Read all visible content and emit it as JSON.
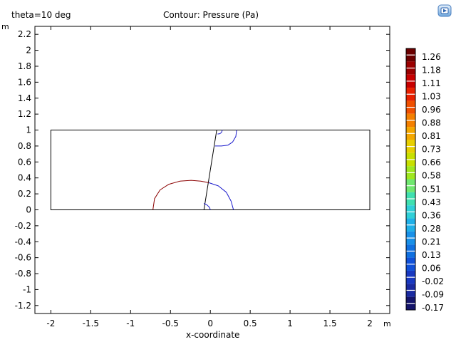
{
  "header": {
    "parameter": "theta=10 deg",
    "title": "Contour: Pressure (Pa)"
  },
  "axes": {
    "unit_y": "m",
    "unit_x": "m",
    "xlabel": "x-coordinate"
  },
  "chart_data": {
    "type": "contour",
    "title": "Contour: Pressure (Pa)",
    "xlabel": "x-coordinate",
    "ylabel": "",
    "xlim": [
      -2.2,
      2.25
    ],
    "ylim": [
      -1.3,
      2.3
    ],
    "x_ticks": [
      -2,
      -1.5,
      -1,
      -0.5,
      0,
      0.5,
      1,
      1.5,
      2
    ],
    "x_tick_labels": [
      "-2",
      "-1.5",
      "-1",
      "-0.5",
      "0",
      "0.5",
      "1",
      "1.5",
      "2"
    ],
    "y_ticks": [
      2.2,
      2,
      1.8,
      1.6,
      1.4,
      1.2,
      1,
      0.8,
      0.6,
      0.4,
      0.2,
      0,
      -0.2,
      -0.4,
      -0.6,
      -0.8,
      -1,
      -1.2
    ],
    "y_tick_labels": [
      "2.2",
      "2",
      "1.8",
      "1.6",
      "1.4",
      "1.2",
      "1",
      "0.8",
      "0.6",
      "0.4",
      "0.2",
      "0",
      "-0.2",
      "-0.4",
      "-0.6",
      "-0.8",
      "-1",
      "-1.2"
    ],
    "domain_rect": {
      "x0": -2,
      "x1": 2,
      "y0": 0,
      "y1": 1
    },
    "plate_line": [
      [
        -0.08,
        0
      ],
      [
        0.08,
        1
      ]
    ],
    "contours": [
      {
        "level": "high",
        "color": "#8b0000",
        "points": [
          [
            -0.72,
            0
          ],
          [
            -0.7,
            0.14
          ],
          [
            -0.63,
            0.25
          ],
          [
            -0.52,
            0.32
          ],
          [
            -0.38,
            0.36
          ],
          [
            -0.24,
            0.37
          ],
          [
            -0.12,
            0.36
          ],
          [
            -0.02,
            0.34
          ]
        ]
      },
      {
        "level": "low",
        "color": "#1a1acc",
        "points": [
          [
            -0.02,
            0.34
          ],
          [
            0.1,
            0.3
          ],
          [
            0.2,
            0.22
          ],
          [
            0.26,
            0.11
          ],
          [
            0.29,
            0
          ]
        ]
      },
      {
        "level": "low",
        "color": "#1a1acc",
        "points": [
          [
            -0.08,
            0.08
          ],
          [
            -0.04,
            0.06
          ],
          [
            -0.01,
            0.03
          ],
          [
            0.0,
            0
          ]
        ]
      },
      {
        "level": "low",
        "color": "#1a1acc",
        "points": [
          [
            0.33,
            1.0
          ],
          [
            0.32,
            0.92
          ],
          [
            0.28,
            0.85
          ],
          [
            0.22,
            0.81
          ],
          [
            0.14,
            0.8
          ],
          [
            0.06,
            0.8
          ]
        ]
      },
      {
        "level": "low",
        "color": "#1a1acc",
        "points": [
          [
            0.15,
            1.0
          ],
          [
            0.14,
            0.97
          ],
          [
            0.12,
            0.955
          ],
          [
            0.09,
            0.95
          ]
        ]
      }
    ],
    "colorbar": {
      "labels": [
        "1.26",
        "1.18",
        "1.11",
        "1.03",
        "0.96",
        "0.88",
        "0.81",
        "0.73",
        "0.66",
        "0.58",
        "0.51",
        "0.43",
        "0.36",
        "0.28",
        "0.21",
        "0.13",
        "0.06",
        "-0.02",
        "-0.09",
        "-0.17"
      ],
      "stops": [
        "#6b0000",
        "#9b0000",
        "#c80000",
        "#e82000",
        "#f05000",
        "#f48000",
        "#f4a800",
        "#e8d000",
        "#c8e000",
        "#a0e820",
        "#70e870",
        "#40e0b0",
        "#30d0d8",
        "#20b0e8",
        "#1890e8",
        "#1070e0",
        "#1050d8",
        "#1838c0",
        "#1a2aa0",
        "#14146a"
      ]
    }
  }
}
